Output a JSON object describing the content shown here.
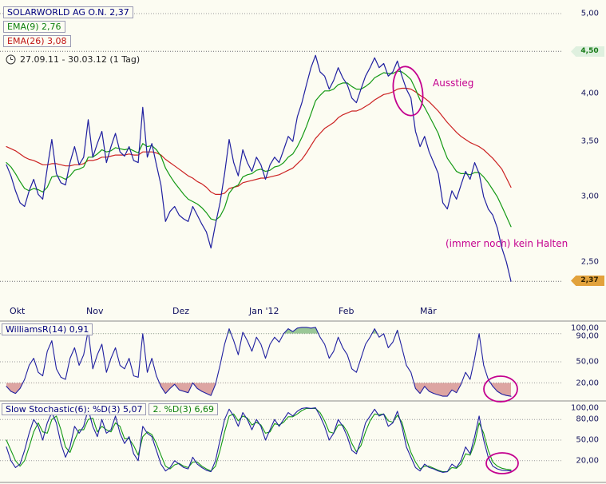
{
  "legend": {
    "symbol": "SOLARWORLD AG O.N. 2,37",
    "ema9": "EMA(9) 2,76",
    "ema26": "EMA(26) 3,08",
    "date_range": "27.09.11 - 30.03.12 (1 Tag)"
  },
  "annotations": {
    "ausstieg": "Ausstieg",
    "kein_halten": "(immer noch) kein Halten"
  },
  "colors": {
    "price": "#2020a0",
    "ema9": "#149914",
    "ema26": "#cc2222",
    "stoch_d2": "#149914",
    "magenta": "#c4008f",
    "fill_over": "#70b070",
    "fill_under": "#d08080",
    "grid": "#9a9a9a",
    "grid_dark": "#6a6a6a",
    "separator": "#8a8a8a"
  },
  "chart_data": {
    "type": "line",
    "title": "SOLARWORLD AG O.N.",
    "period": "27.09.11 - 30.03.12 (1 Tag)",
    "x_labels": [
      "Okt",
      "Nov",
      "Dez",
      "Jan '12",
      "Feb",
      "Mär"
    ],
    "panels": [
      {
        "name": "price",
        "scale": "log",
        "ylim": [
          2.2,
          5.1
        ],
        "yticks": [
          5.0,
          4.0,
          3.5,
          3.0,
          2.5
        ],
        "ytick_labels": [
          "5,00",
          "4,00",
          "3,50",
          "3,00",
          "2,50"
        ],
        "tags": [
          {
            "label": "4,50",
            "value": 4.5,
            "style": "green"
          },
          {
            "label": "2,37",
            "value": 2.37,
            "style": "orange"
          }
        ],
        "hlines": [
          5.0,
          4.5,
          2.37
        ],
        "series": [
          {
            "name": "SOLARWORLD AG O.N.",
            "last": 2.37,
            "values": [
              3.28,
              3.18,
              3.05,
              2.95,
              2.92,
              3.05,
              3.15,
              3.02,
              2.98,
              3.25,
              3.52,
              3.2,
              3.12,
              3.1,
              3.3,
              3.45,
              3.28,
              3.35,
              3.72,
              3.35,
              3.48,
              3.6,
              3.3,
              3.45,
              3.58,
              3.4,
              3.36,
              3.45,
              3.32,
              3.3,
              3.85,
              3.35,
              3.48,
              3.28,
              3.1,
              2.8,
              2.88,
              2.92,
              2.85,
              2.82,
              2.8,
              2.92,
              2.85,
              2.78,
              2.72,
              2.6,
              2.78,
              2.95,
              3.2,
              3.52,
              3.3,
              3.18,
              3.42,
              3.3,
              3.22,
              3.35,
              3.28,
              3.15,
              3.28,
              3.35,
              3.3,
              3.42,
              3.55,
              3.5,
              3.75,
              3.9,
              4.1,
              4.3,
              4.45,
              4.25,
              4.2,
              4.05,
              4.15,
              4.3,
              4.18,
              4.1,
              3.95,
              3.9,
              4.05,
              4.2,
              4.3,
              4.42,
              4.3,
              4.35,
              4.2,
              4.25,
              4.38,
              4.2,
              4.05,
              3.95,
              3.6,
              3.45,
              3.55,
              3.4,
              3.3,
              3.2,
              2.95,
              2.9,
              3.05,
              2.98,
              3.1,
              3.22,
              3.15,
              3.3,
              3.2,
              3.0,
              2.9,
              2.85,
              2.75,
              2.6,
              2.5,
              2.37
            ]
          },
          {
            "name": "EMA(9)",
            "last": 2.76,
            "values": [
              3.3,
              3.26,
              3.2,
              3.13,
              3.07,
              3.05,
              3.07,
              3.06,
              3.04,
              3.08,
              3.17,
              3.18,
              3.17,
              3.15,
              3.18,
              3.23,
              3.24,
              3.26,
              3.35,
              3.35,
              3.38,
              3.42,
              3.4,
              3.41,
              3.44,
              3.43,
              3.42,
              3.43,
              3.41,
              3.39,
              3.48,
              3.45,
              3.46,
              3.42,
              3.36,
              3.25,
              3.18,
              3.12,
              3.07,
              3.02,
              2.98,
              2.96,
              2.94,
              2.91,
              2.87,
              2.82,
              2.81,
              2.84,
              2.91,
              3.03,
              3.08,
              3.1,
              3.17,
              3.19,
              3.2,
              3.23,
              3.24,
              3.22,
              3.23,
              3.26,
              3.27,
              3.3,
              3.35,
              3.38,
              3.45,
              3.54,
              3.65,
              3.78,
              3.92,
              3.98,
              4.03,
              4.03,
              4.05,
              4.1,
              4.12,
              4.12,
              4.08,
              4.05,
              4.05,
              4.08,
              4.12,
              4.18,
              4.21,
              4.24,
              4.23,
              4.23,
              4.26,
              4.25,
              4.21,
              4.16,
              4.05,
              3.93,
              3.85,
              3.76,
              3.67,
              3.58,
              3.45,
              3.34,
              3.28,
              3.22,
              3.2,
              3.2,
              3.19,
              3.21,
              3.21,
              3.17,
              3.12,
              3.06,
              3.0,
              2.92,
              2.84,
              2.76
            ]
          },
          {
            "name": "EMA(26)",
            "last": 3.08,
            "values": [
              3.45,
              3.43,
              3.41,
              3.38,
              3.35,
              3.33,
              3.32,
              3.3,
              3.28,
              3.28,
              3.29,
              3.29,
              3.28,
              3.27,
              3.27,
              3.28,
              3.28,
              3.29,
              3.32,
              3.32,
              3.33,
              3.35,
              3.35,
              3.36,
              3.37,
              3.37,
              3.37,
              3.38,
              3.37,
              3.37,
              3.4,
              3.4,
              3.4,
              3.39,
              3.37,
              3.33,
              3.3,
              3.27,
              3.24,
              3.21,
              3.18,
              3.16,
              3.13,
              3.11,
              3.08,
              3.04,
              3.02,
              3.02,
              3.03,
              3.07,
              3.08,
              3.09,
              3.12,
              3.13,
              3.14,
              3.15,
              3.16,
              3.16,
              3.17,
              3.18,
              3.19,
              3.21,
              3.23,
              3.25,
              3.29,
              3.33,
              3.39,
              3.46,
              3.53,
              3.58,
              3.63,
              3.66,
              3.69,
              3.74,
              3.77,
              3.79,
              3.81,
              3.81,
              3.83,
              3.86,
              3.89,
              3.93,
              3.96,
              3.99,
              4.0,
              4.02,
              4.05,
              4.06,
              4.06,
              4.05,
              4.02,
              3.98,
              3.95,
              3.91,
              3.86,
              3.81,
              3.75,
              3.69,
              3.64,
              3.59,
              3.55,
              3.52,
              3.49,
              3.47,
              3.45,
              3.42,
              3.38,
              3.34,
              3.29,
              3.24,
              3.16,
              3.08
            ]
          }
        ]
      },
      {
        "name": "WilliamsR(14)",
        "legend": "WilliamsR(14) 0,91",
        "last": 0.91,
        "ylim": [
          0,
          100
        ],
        "yticks": [
          100,
          90,
          50,
          20
        ],
        "ytick_labels": [
          "100,00",
          "90,00",
          "50,00",
          "20,00"
        ],
        "overbought": 90,
        "oversold": 20,
        "values": [
          15,
          8,
          5,
          12,
          25,
          45,
          55,
          35,
          30,
          65,
          80,
          40,
          28,
          25,
          55,
          70,
          45,
          60,
          95,
          40,
          60,
          75,
          35,
          55,
          70,
          45,
          40,
          55,
          30,
          28,
          90,
          35,
          55,
          30,
          15,
          5,
          12,
          18,
          10,
          8,
          6,
          20,
          12,
          8,
          5,
          2,
          18,
          45,
          75,
          97,
          80,
          60,
          92,
          80,
          65,
          85,
          75,
          55,
          75,
          85,
          78,
          90,
          97,
          93,
          98,
          99,
          99,
          98,
          99,
          85,
          75,
          55,
          65,
          85,
          70,
          60,
          40,
          35,
          55,
          75,
          85,
          97,
          85,
          90,
          70,
          78,
          95,
          70,
          45,
          35,
          12,
          5,
          15,
          8,
          5,
          3,
          1,
          1,
          10,
          6,
          18,
          35,
          25,
          55,
          90,
          45,
          25,
          15,
          8,
          4,
          2,
          0.91
        ]
      },
      {
        "name": "Slow Stochastic(6)",
        "legend_d": "Slow Stochastic(6): %D(3) 5,07",
        "legend_d2": "2. %D(3) 6,69",
        "ylim": [
          0,
          100
        ],
        "yticks": [
          100,
          80,
          50,
          20
        ],
        "ytick_labels": [
          "100,00",
          "80,00",
          "50,00",
          "20,00"
        ],
        "series": [
          {
            "name": "%D(3)",
            "last": 5.07,
            "values": [
              40,
              20,
              10,
              15,
              35,
              60,
              80,
              70,
              50,
              75,
              90,
              75,
              45,
              25,
              40,
              70,
              60,
              70,
              95,
              70,
              55,
              80,
              60,
              65,
              85,
              60,
              45,
              55,
              30,
              20,
              70,
              60,
              55,
              35,
              15,
              5,
              10,
              20,
              15,
              10,
              8,
              25,
              15,
              10,
              6,
              4,
              20,
              50,
              80,
              95,
              85,
              70,
              90,
              80,
              65,
              80,
              70,
              50,
              65,
              80,
              70,
              80,
              90,
              85,
              92,
              96,
              97,
              96,
              97,
              85,
              70,
              50,
              60,
              80,
              70,
              55,
              35,
              30,
              50,
              75,
              85,
              95,
              85,
              88,
              70,
              75,
              92,
              70,
              40,
              25,
              10,
              5,
              15,
              10,
              8,
              5,
              3,
              4,
              15,
              10,
              20,
              40,
              30,
              55,
              85,
              50,
              25,
              12,
              8,
              6,
              5.5,
              5.07
            ]
          },
          {
            "name": "2. %D(3)",
            "last": 6.69,
            "values": [
              50,
              35,
              20,
              12,
              20,
              40,
              62,
              75,
              62,
              60,
              80,
              85,
              65,
              40,
              32,
              50,
              65,
              65,
              80,
              82,
              62,
              70,
              65,
              62,
              75,
              70,
              52,
              52,
              42,
              28,
              55,
              62,
              58,
              45,
              28,
              12,
              8,
              14,
              16,
              12,
              10,
              18,
              18,
              12,
              8,
              5,
              12,
              35,
              62,
              85,
              88,
              78,
              85,
              82,
              72,
              76,
              72,
              60,
              62,
              74,
              72,
              76,
              84,
              84,
              88,
              93,
              96,
              96,
              96,
              90,
              78,
              62,
              60,
              72,
              72,
              62,
              45,
              33,
              42,
              62,
              78,
              88,
              87,
              88,
              78,
              76,
              86,
              76,
              52,
              32,
              18,
              8,
              12,
              12,
              9,
              6,
              4,
              4,
              10,
              9,
              15,
              30,
              28,
              45,
              75,
              60,
              35,
              18,
              12,
              9,
              7.5,
              6.69
            ]
          }
        ]
      }
    ]
  }
}
